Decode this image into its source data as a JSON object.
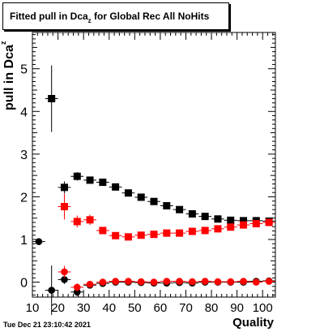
{
  "header": {
    "title_main": "Fitted pull in Dca",
    "title_sub": "z",
    "title_rest": " for Global Rec All NoHits"
  },
  "footer": {
    "timestamp": "Tue Dec 21 23:10:42 2021"
  },
  "chart_data": {
    "type": "scatter",
    "title": "Fitted pull in Dca_z for Global Rec All NoHits",
    "xlabel": "Quality",
    "ylabel_main": "pull in Dca",
    "ylabel_sub": "z",
    "xlim": [
      10,
      105
    ],
    "ylim": [
      -0.35,
      5.85
    ],
    "xticks": [
      10,
      20,
      30,
      40,
      50,
      60,
      70,
      80,
      90,
      100
    ],
    "xtick_labels": [
      "10",
      "20",
      "30",
      "40",
      "50",
      "60",
      "70",
      "80",
      "90",
      "100"
    ],
    "yticks": [
      0,
      1,
      2,
      3,
      4,
      5
    ],
    "ytick_labels": [
      "0",
      "1",
      "2",
      "3",
      "4",
      "5"
    ],
    "grid": false,
    "series": [
      {
        "marker": "square",
        "color": "#000000",
        "x": [
          17.5,
          22.5,
          27.5,
          32.5,
          37.5,
          42.5,
          47.5,
          52.5,
          57.5,
          62.5,
          67.5,
          72.5,
          77.5,
          82.5,
          87.5,
          92.5,
          97.5,
          102.5
        ],
        "y": [
          4.3,
          2.22,
          2.48,
          2.39,
          2.34,
          2.23,
          2.09,
          1.99,
          1.89,
          1.79,
          1.7,
          1.6,
          1.54,
          1.48,
          1.45,
          1.44,
          1.44,
          1.43
        ],
        "err": [
          0.78,
          0.14,
          0.1,
          0.06,
          0.05,
          0.04,
          0.04,
          0.04,
          0.04,
          0.04,
          0.04,
          0.04,
          0.04,
          0.04,
          0.04,
          0.04,
          0.04,
          0.04
        ]
      },
      {
        "marker": "square",
        "color": "#ff0000",
        "x": [
          22.5,
          27.5,
          32.5,
          37.5,
          42.5,
          47.5,
          52.5,
          57.5,
          62.5,
          67.5,
          72.5,
          77.5,
          82.5,
          87.5,
          92.5,
          97.5,
          102.5
        ],
        "y": [
          1.77,
          1.42,
          1.46,
          1.21,
          1.09,
          1.06,
          1.1,
          1.12,
          1.15,
          1.15,
          1.19,
          1.21,
          1.25,
          1.29,
          1.34,
          1.37,
          1.4
        ],
        "err": [
          0.3,
          0.14,
          0.12,
          0.06,
          0.05,
          0.04,
          0.04,
          0.04,
          0.04,
          0.04,
          0.04,
          0.04,
          0.04,
          0.04,
          0.04,
          0.04,
          0.04
        ]
      },
      {
        "marker": "circle",
        "color": "#000000",
        "x": [
          12.5,
          17.5,
          22.5,
          27.5,
          32.5,
          37.5,
          42.5,
          47.5,
          52.5,
          57.5,
          62.5,
          67.5,
          72.5,
          77.5,
          82.5,
          87.5,
          92.5,
          97.5,
          102.5
        ],
        "y": [
          0.95,
          -0.19,
          0.06,
          -0.23,
          -0.07,
          -0.03,
          0.0,
          0.0,
          -0.01,
          -0.02,
          -0.02,
          -0.01,
          -0.02,
          0.0,
          0.0,
          0.0,
          0.0,
          0.02,
          0.03
        ],
        "err": [
          0.02,
          0.58,
          0.1,
          0.1,
          0.07,
          0.05,
          0.04,
          0.03,
          0.03,
          0.03,
          0.03,
          0.03,
          0.03,
          0.03,
          0.03,
          0.03,
          0.03,
          0.03,
          0.03
        ]
      },
      {
        "marker": "circle",
        "color": "#ff0000",
        "x": [
          22.5,
          27.5,
          32.5,
          37.5,
          42.5,
          47.5,
          52.5,
          57.5,
          62.5,
          67.5,
          72.5,
          77.5,
          82.5,
          87.5,
          92.5,
          97.5,
          102.5
        ],
        "y": [
          0.24,
          -0.12,
          -0.05,
          0.0,
          0.02,
          0.02,
          0.01,
          0.0,
          0.02,
          0.02,
          0.01,
          0.02,
          0.01,
          0.01,
          0.02,
          0.0,
          0.02
        ],
        "err": [
          0.14,
          0.09,
          0.06,
          0.05,
          0.04,
          0.03,
          0.03,
          0.03,
          0.03,
          0.03,
          0.03,
          0.03,
          0.03,
          0.03,
          0.03,
          0.03,
          0.03
        ]
      }
    ]
  }
}
